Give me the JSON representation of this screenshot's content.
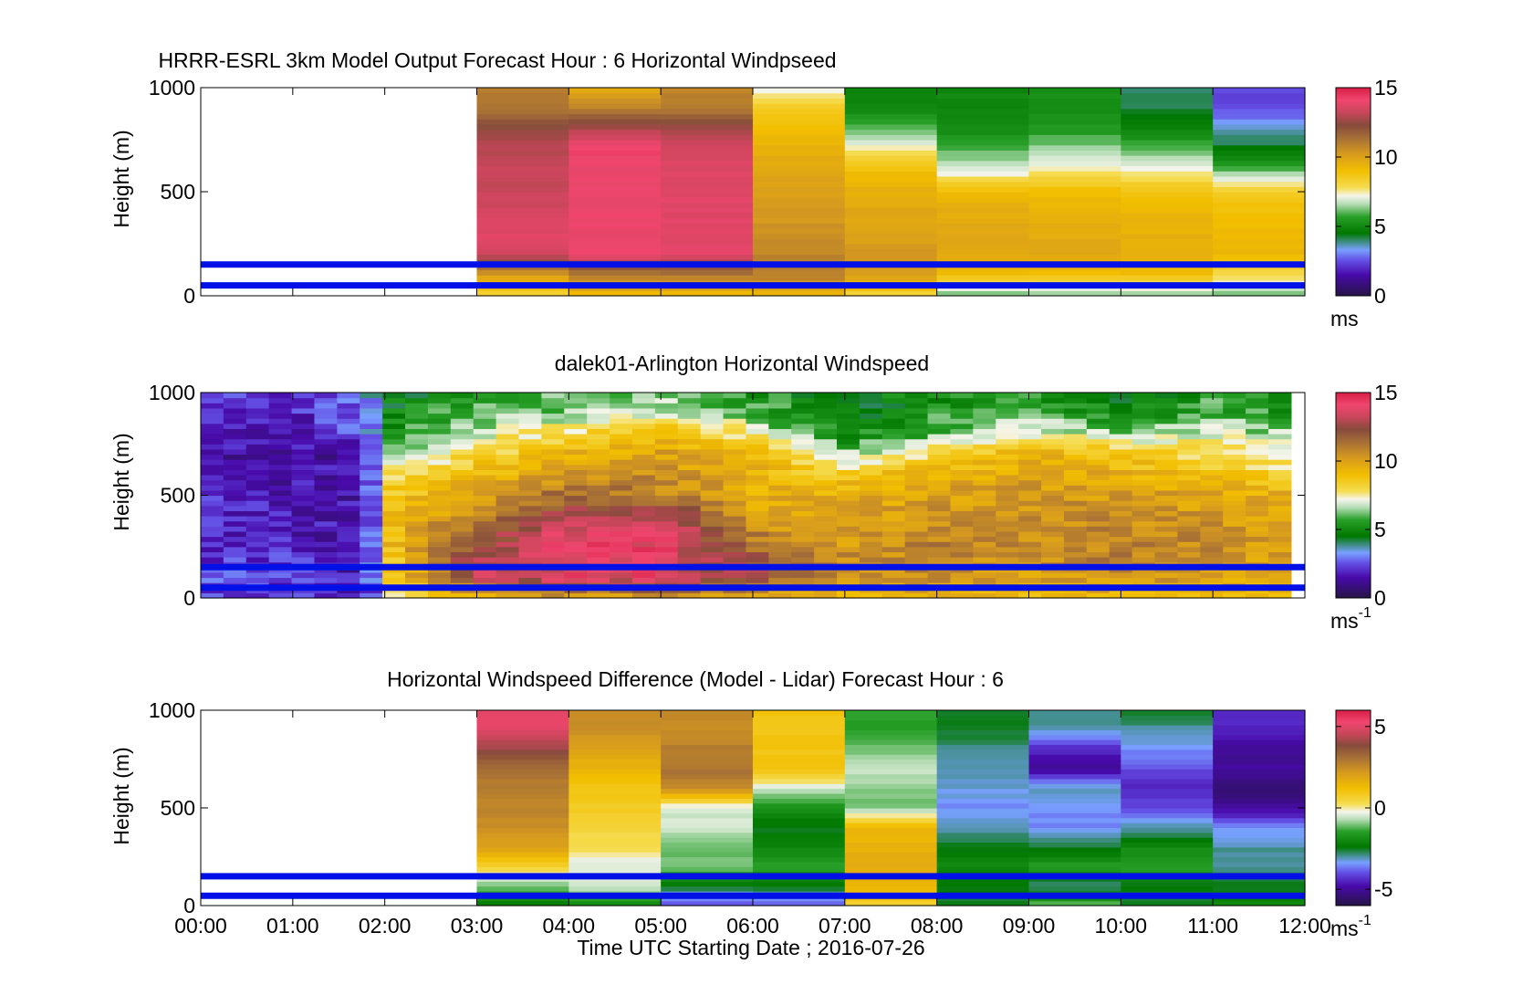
{
  "figure": {
    "xlabel": "Time UTC  Starting Date ; 2016-07-26",
    "ref_lines_m": [
      50,
      150
    ],
    "ref_line_color": "#0010e6"
  },
  "chart_data": [
    {
      "type": "heatmap",
      "title": "HRRR-ESRL 3km Model Output   Forecast Hour : 6 Horizontal Windpseed",
      "ylabel": "Height (m)",
      "ylim": [
        0,
        1000
      ],
      "yticks": [
        "0",
        "500",
        "1000"
      ],
      "xlim": [
        0,
        12
      ],
      "xticks": [
        "00:00",
        "01:00",
        "02:00",
        "03:00",
        "04:00",
        "05:00",
        "06:00",
        "07:00",
        "08:00",
        "09:00",
        "10:00",
        "11:00",
        "12:00"
      ],
      "colorbar": {
        "range": [
          0,
          15
        ],
        "ticks": [
          "0",
          "5",
          "10",
          "15"
        ],
        "label": "ms",
        "label_sup": ""
      },
      "data_start_hour": 3,
      "data_end_hour": 12,
      "profile_heights_m": [
        0,
        100,
        200,
        300,
        400,
        500,
        600,
        700,
        800,
        900,
        1000
      ],
      "columns": [
        {
          "hour": 3,
          "values": [
            8,
            10,
            13.5,
            13.8,
            13.5,
            13.2,
            13.2,
            13.0,
            12.5,
            11.2,
            11.0
          ]
        },
        {
          "hour": 4,
          "values": [
            9,
            11,
            14.0,
            14.0,
            14.0,
            14.0,
            14.0,
            14.2,
            13.0,
            11.0,
            9.5
          ]
        },
        {
          "hour": 5,
          "values": [
            9,
            11,
            13.8,
            13.8,
            13.8,
            13.8,
            13.6,
            13.5,
            12.8,
            11.0,
            10.8
          ]
        },
        {
          "hour": 6,
          "values": [
            9,
            11,
            10.8,
            10.5,
            10.2,
            10.0,
            9.8,
            9.5,
            9.0,
            8.5,
            7.0
          ]
        },
        {
          "hour": 7,
          "values": [
            8,
            10,
            10.2,
            10.0,
            9.8,
            9.5,
            9.0,
            7.5,
            6.0,
            5.0,
            4.8
          ]
        },
        {
          "hour": 8,
          "values": [
            6,
            9,
            9.8,
            9.8,
            9.6,
            9.2,
            7.0,
            6.0,
            5.2,
            5.0,
            5.0
          ]
        },
        {
          "hour": 9,
          "values": [
            6,
            9,
            9.8,
            9.6,
            9.4,
            9.0,
            7.6,
            6.5,
            5.5,
            5.2,
            5.2
          ]
        },
        {
          "hour": 10,
          "values": [
            6,
            9,
            9.6,
            9.5,
            9.2,
            8.8,
            7.4,
            6.0,
            5.0,
            4.2,
            4.0
          ]
        },
        {
          "hour": 11,
          "values": [
            6,
            8,
            9.2,
            9.2,
            9.0,
            8.5,
            6.2,
            4.5,
            3.5,
            2.5,
            2.3
          ]
        }
      ]
    },
    {
      "type": "heatmap",
      "title": "dalek01-Arlington  Horizontal Windspeed",
      "ylabel": "Height (m)",
      "ylim": [
        0,
        1000
      ],
      "yticks": [
        "0",
        "500",
        "1000"
      ],
      "xlim": [
        0,
        12
      ],
      "xticks": [
        "00:00",
        "01:00",
        "02:00",
        "03:00",
        "04:00",
        "05:00",
        "06:00",
        "07:00",
        "08:00",
        "09:00",
        "10:00",
        "11:00",
        "12:00"
      ],
      "colorbar": {
        "range": [
          0,
          15
        ],
        "ticks": [
          "0",
          "5",
          "10",
          "15"
        ],
        "label": "ms",
        "label_sup": "-1"
      },
      "data_start_hour": 0,
      "data_end_hour": 11.85,
      "anchor_hours": [
        0,
        1,
        1.8,
        2.1,
        3,
        4,
        5,
        6,
        7,
        8,
        9,
        10,
        11,
        11.85
      ],
      "profile_heights_m": [
        0,
        100,
        200,
        300,
        400,
        500,
        600,
        700,
        800,
        900,
        1000
      ],
      "anchor_profiles": [
        [
          2.5,
          2.5,
          2.2,
          2.0,
          2.0,
          2.0,
          1.8,
          1.5,
          1.5,
          2.0,
          2.2
        ],
        [
          2.0,
          2.2,
          2.0,
          1.8,
          1.7,
          1.6,
          1.5,
          1.4,
          1.5,
          1.8,
          2.0
        ],
        [
          1.5,
          1.5,
          1.6,
          1.5,
          1.5,
          1.5,
          1.4,
          1.5,
          2.5,
          3.0,
          3.0
        ],
        [
          7.0,
          8.5,
          9.0,
          9.2,
          9.0,
          8.8,
          8.0,
          6.5,
          5.5,
          5.0,
          4.5
        ],
        [
          9.0,
          13.0,
          12.8,
          12.0,
          11.0,
          10.0,
          9.0,
          8.0,
          7.0,
          6.0,
          5.5
        ],
        [
          10.0,
          13.8,
          14.0,
          13.8,
          13.0,
          11.5,
          10.5,
          9.5,
          8.0,
          6.5,
          6.0
        ],
        [
          10.0,
          13.8,
          14.0,
          14.0,
          13.2,
          11.0,
          10.5,
          10.0,
          9.0,
          7.0,
          6.5
        ],
        [
          9.5,
          12.5,
          12.0,
          11.0,
          10.0,
          9.5,
          9.5,
          9.0,
          7.5,
          6.0,
          5.5
        ],
        [
          9.0,
          10.5,
          10.5,
          10.0,
          9.8,
          9.5,
          8.5,
          6.5,
          5.0,
          4.5,
          4.5
        ],
        [
          9.0,
          10.5,
          10.8,
          10.8,
          10.5,
          10.0,
          9.5,
          8.0,
          6.0,
          5.5,
          5.0
        ],
        [
          9.0,
          10.0,
          10.5,
          10.5,
          10.5,
          10.2,
          10.0,
          9.5,
          7.5,
          6.0,
          5.5
        ],
        [
          9.0,
          10.5,
          11.0,
          10.8,
          10.5,
          10.2,
          9.5,
          8.5,
          6.5,
          5.0,
          4.5
        ],
        [
          9.0,
          10.0,
          10.5,
          10.5,
          10.2,
          9.8,
          9.0,
          8.0,
          7.0,
          6.0,
          5.5
        ],
        [
          9.0,
          9.5,
          9.8,
          10.0,
          10.0,
          9.8,
          8.0,
          7.5,
          6.5,
          5.5,
          5.0
        ]
      ]
    },
    {
      "type": "heatmap",
      "title": "Horizontal Windspeed Difference (Model - Lidar) Forecast Hour : 6",
      "ylabel": "Height (m)",
      "ylim": [
        0,
        1000
      ],
      "yticks": [
        "0",
        "500",
        "1000"
      ],
      "xlim": [
        0,
        12
      ],
      "xticks": [
        "00:00",
        "01:00",
        "02:00",
        "03:00",
        "04:00",
        "05:00",
        "06:00",
        "07:00",
        "08:00",
        "09:00",
        "10:00",
        "11:00",
        "12:00"
      ],
      "colorbar": {
        "range": [
          -6,
          6
        ],
        "ticks": [
          "-5",
          "0",
          "5"
        ],
        "label": "ms",
        "label_sup": "-1"
      },
      "data_start_hour": 3,
      "data_end_hour": 12,
      "profile_heights_m": [
        0,
        100,
        200,
        300,
        400,
        500,
        600,
        700,
        800,
        900,
        1000
      ],
      "columns": [
        {
          "hour": 3,
          "values": [
            -2.5,
            -1.0,
            0.5,
            2.0,
            2.5,
            2.6,
            2.8,
            3.0,
            4.0,
            5.0,
            5.0
          ]
        },
        {
          "hour": 4,
          "values": [
            -2.0,
            -0.5,
            -0.5,
            0.2,
            0.5,
            0.8,
            1.0,
            1.5,
            2.0,
            2.5,
            2.5
          ]
        },
        {
          "hour": 5,
          "values": [
            -4.0,
            -2.5,
            -1.0,
            -1.2,
            -0.5,
            -0.5,
            2.5,
            3.0,
            2.8,
            2.5,
            2.5
          ]
        },
        {
          "hour": 6,
          "values": [
            -4.0,
            -2.5,
            -1.5,
            -2.0,
            -2.5,
            -1.8,
            -0.5,
            1.0,
            1.0,
            1.0,
            1.0
          ]
        },
        {
          "hour": 7,
          "values": [
            0.5,
            1.5,
            1.8,
            1.5,
            1.5,
            -1.0,
            -1.0,
            -0.5,
            -1.0,
            -1.5,
            -1.5
          ]
        },
        {
          "hour": 8,
          "values": [
            -2.5,
            -2.5,
            -2.0,
            -2.5,
            -3.0,
            -3.5,
            -3.2,
            -3.0,
            -3.0,
            -2.5,
            -2.5
          ]
        },
        {
          "hour": 9,
          "values": [
            -1.0,
            -3.0,
            -1.5,
            -2.5,
            -3.5,
            -3.5,
            -3.0,
            -5.0,
            -4.5,
            -3.0,
            -3.0
          ]
        },
        {
          "hour": 10,
          "values": [
            -2.5,
            -2.5,
            -1.5,
            -2.0,
            -3.0,
            -4.0,
            -4.5,
            -4.0,
            -3.5,
            -3.0,
            -2.5
          ]
        },
        {
          "hour": 11,
          "values": [
            -2.0,
            -2.5,
            -3.0,
            -3.0,
            -3.5,
            -5.0,
            -5.5,
            -5.0,
            -5.0,
            -4.5,
            -4.5
          ]
        }
      ]
    }
  ]
}
